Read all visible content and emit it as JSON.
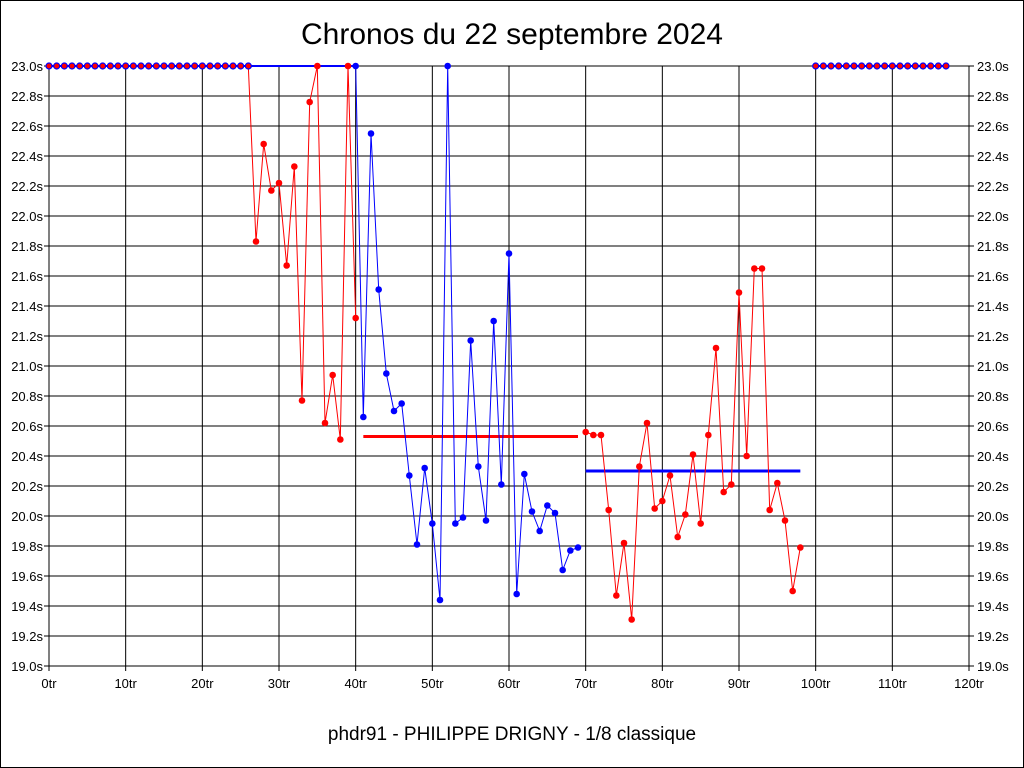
{
  "chart_data": {
    "type": "line",
    "title": "Chronos du 22 septembre 2024",
    "subtitle": "phdr91 - PHILIPPE DRIGNY - 1/8 classique",
    "xlabel": "",
    "ylabel": "",
    "xlim": [
      0,
      120
    ],
    "ylim": [
      19.0,
      23.0
    ],
    "grid": true,
    "x_ticks": [
      "0tr",
      "10tr",
      "20tr",
      "30tr",
      "40tr",
      "50tr",
      "60tr",
      "70tr",
      "80tr",
      "90tr",
      "100tr",
      "110tr",
      "120tr"
    ],
    "y_ticks": [
      "19.0s",
      "19.2s",
      "19.4s",
      "19.6s",
      "19.8s",
      "20.0s",
      "20.2s",
      "20.4s",
      "20.6s",
      "20.8s",
      "21.0s",
      "21.2s",
      "21.4s",
      "21.6s",
      "21.8s",
      "22.0s",
      "22.2s",
      "22.4s",
      "22.6s",
      "22.8s",
      "23.0s"
    ],
    "colors": {
      "red": "#ff0000",
      "blue": "#0000ff"
    },
    "capped_points": {
      "x": [
        0,
        1,
        2,
        3,
        4,
        5,
        6,
        7,
        8,
        9,
        10,
        11,
        12,
        13,
        14,
        15,
        16,
        17,
        18,
        19,
        20,
        21,
        22,
        23,
        24,
        25,
        26,
        100,
        101,
        102,
        103,
        104,
        105,
        106,
        107,
        108,
        109,
        110,
        111,
        112,
        113,
        114,
        115,
        116,
        117
      ],
      "y": 23.0
    },
    "series": [
      {
        "color": "red",
        "x": [
          26,
          27,
          28,
          29,
          30,
          31,
          32,
          33,
          34,
          35,
          36,
          37,
          38,
          39,
          40
        ],
        "y": [
          23.0,
          21.83,
          22.48,
          22.17,
          22.22,
          21.67,
          22.33,
          20.77,
          22.76,
          23.0,
          20.62,
          20.94,
          20.51,
          23.0,
          21.32
        ]
      },
      {
        "color": "blue",
        "x": [
          40,
          41,
          42,
          43,
          44,
          45,
          46,
          47,
          48,
          49,
          50,
          51,
          52,
          53,
          54,
          55,
          56,
          57,
          58,
          59,
          60,
          61,
          62,
          63,
          64,
          65,
          66,
          67,
          68,
          69
        ],
        "y": [
          23.0,
          20.66,
          22.55,
          21.51,
          20.95,
          20.7,
          20.75,
          20.27,
          19.81,
          20.32,
          19.95,
          19.44,
          23.0,
          19.95,
          19.99,
          21.17,
          20.33,
          19.97,
          21.3,
          20.21,
          21.75,
          19.48,
          20.28,
          20.03,
          19.9,
          20.07,
          20.02,
          19.64,
          19.77,
          19.79
        ]
      },
      {
        "color": "red",
        "x": [
          70,
          71,
          72,
          73,
          74,
          75,
          76,
          77,
          78,
          79,
          80,
          81,
          82,
          83,
          84,
          85,
          86,
          87,
          88,
          89,
          90,
          91,
          92,
          93,
          94,
          95,
          96,
          97,
          98
        ],
        "y": [
          20.56,
          20.54,
          20.54,
          20.04,
          19.47,
          19.82,
          19.31,
          20.33,
          20.62,
          20.05,
          20.1,
          20.27,
          19.86,
          20.01,
          20.41,
          19.95,
          20.54,
          21.12,
          20.16,
          20.21,
          21.49,
          20.4,
          21.65,
          21.65,
          20.04,
          20.22,
          19.97,
          19.5,
          19.79
        ]
      }
    ],
    "averages": [
      {
        "color": "red",
        "x_start": 41,
        "x_end": 69,
        "y": 20.53
      },
      {
        "color": "blue",
        "x_start": 70,
        "x_end": 98,
        "y": 20.3
      }
    ]
  }
}
